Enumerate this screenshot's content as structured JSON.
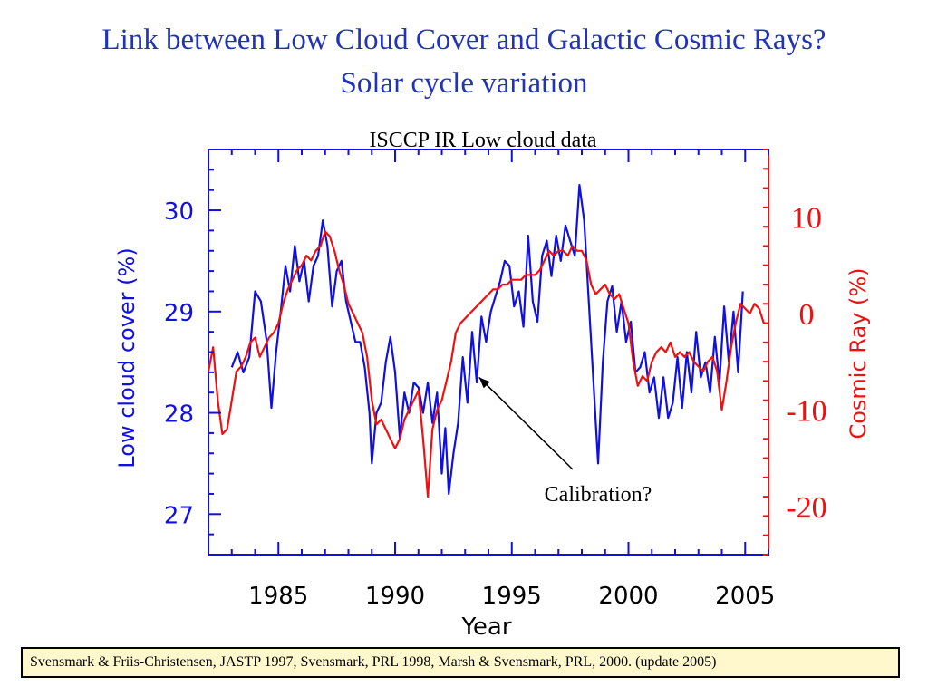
{
  "title": "Link between Low Cloud Cover and Galactic Cosmic Rays?",
  "subtitle": "Solar cycle variation",
  "citation": "Svensmark & Friis-Christensen, JASTP 1997, Svensmark, PRL  1998, Marsh & Svensmark, PRL, 2000. (update 2005)",
  "colors": {
    "title": "#2233bb",
    "cloud": "#1010e0",
    "cosmic": "#ee1111",
    "citation_bg": "#fff8cc"
  },
  "chart_data": {
    "type": "line",
    "title": "ISCCP IR Low cloud data",
    "xlabel": "Year",
    "ylabel_left": "Low cloud cover (%)",
    "ylabel_right": "Cosmic Ray (%)",
    "xlim": [
      1982,
      2006
    ],
    "ylim_left": [
      26.6,
      30.6
    ],
    "ylim_right": [
      -25,
      17
    ],
    "x_ticks": [
      1985,
      1990,
      1995,
      2000,
      2005
    ],
    "y_ticks_left": [
      27,
      28,
      29,
      30
    ],
    "y_ticks_right": [
      10,
      0,
      -10,
      -20
    ],
    "annotation": {
      "text": "Calibration?",
      "points_to": [
        1993.6,
        28.35
      ]
    },
    "series": [
      {
        "name": "Low cloud cover",
        "axis": "left",
        "points": [
          [
            1983.0,
            28.45
          ],
          [
            1983.25,
            28.6
          ],
          [
            1983.5,
            28.4
          ],
          [
            1983.75,
            28.55
          ],
          [
            1984.0,
            29.2
          ],
          [
            1984.25,
            29.1
          ],
          [
            1984.5,
            28.7
          ],
          [
            1984.7,
            28.05
          ],
          [
            1984.9,
            28.6
          ],
          [
            1985.1,
            29.0
          ],
          [
            1985.3,
            29.45
          ],
          [
            1985.5,
            29.2
          ],
          [
            1985.7,
            29.65
          ],
          [
            1985.9,
            29.3
          ],
          [
            1986.1,
            29.5
          ],
          [
            1986.3,
            29.1
          ],
          [
            1986.5,
            29.45
          ],
          [
            1986.7,
            29.55
          ],
          [
            1986.9,
            29.9
          ],
          [
            1987.1,
            29.65
          ],
          [
            1987.3,
            29.05
          ],
          [
            1987.5,
            29.4
          ],
          [
            1987.7,
            29.5
          ],
          [
            1987.9,
            29.1
          ],
          [
            1988.1,
            28.9
          ],
          [
            1988.3,
            28.7
          ],
          [
            1988.5,
            28.7
          ],
          [
            1988.7,
            28.45
          ],
          [
            1988.9,
            28.0
          ],
          [
            1989.0,
            27.5
          ],
          [
            1989.2,
            28.0
          ],
          [
            1989.4,
            28.1
          ],
          [
            1989.6,
            28.5
          ],
          [
            1989.8,
            28.75
          ],
          [
            1990.0,
            28.4
          ],
          [
            1990.2,
            27.75
          ],
          [
            1990.4,
            28.2
          ],
          [
            1990.6,
            28.0
          ],
          [
            1990.8,
            28.3
          ],
          [
            1991.0,
            28.25
          ],
          [
            1991.2,
            28.0
          ],
          [
            1991.4,
            28.3
          ],
          [
            1991.6,
            27.9
          ],
          [
            1991.8,
            28.2
          ],
          [
            1992.0,
            27.4
          ],
          [
            1992.15,
            27.85
          ],
          [
            1992.3,
            27.2
          ],
          [
            1992.5,
            27.6
          ],
          [
            1992.7,
            27.9
          ],
          [
            1992.9,
            28.55
          ],
          [
            1993.1,
            28.1
          ],
          [
            1993.3,
            28.8
          ],
          [
            1993.5,
            28.3
          ],
          [
            1993.7,
            28.95
          ],
          [
            1993.9,
            28.7
          ],
          [
            1994.1,
            29.0
          ],
          [
            1994.3,
            29.15
          ],
          [
            1994.5,
            29.3
          ],
          [
            1994.7,
            29.5
          ],
          [
            1994.9,
            29.45
          ],
          [
            1995.1,
            29.05
          ],
          [
            1995.3,
            29.2
          ],
          [
            1995.5,
            28.85
          ],
          [
            1995.7,
            29.75
          ],
          [
            1995.9,
            29.1
          ],
          [
            1996.1,
            28.9
          ],
          [
            1996.3,
            29.55
          ],
          [
            1996.5,
            29.7
          ],
          [
            1996.7,
            29.35
          ],
          [
            1996.9,
            29.75
          ],
          [
            1997.1,
            29.5
          ],
          [
            1997.3,
            29.85
          ],
          [
            1997.5,
            29.7
          ],
          [
            1997.7,
            29.55
          ],
          [
            1997.9,
            30.25
          ],
          [
            1998.1,
            29.9
          ],
          [
            1998.3,
            29.1
          ],
          [
            1998.5,
            28.3
          ],
          [
            1998.7,
            27.5
          ],
          [
            1998.9,
            28.5
          ],
          [
            1999.1,
            29.1
          ],
          [
            1999.3,
            29.25
          ],
          [
            1999.5,
            28.8
          ],
          [
            1999.7,
            29.1
          ],
          [
            1999.9,
            28.7
          ],
          [
            2000.1,
            28.9
          ],
          [
            2000.3,
            28.4
          ],
          [
            2000.5,
            28.45
          ],
          [
            2000.7,
            28.6
          ],
          [
            2000.9,
            28.2
          ],
          [
            2001.1,
            28.35
          ],
          [
            2001.3,
            27.95
          ],
          [
            2001.5,
            28.35
          ],
          [
            2001.7,
            27.95
          ],
          [
            2001.9,
            28.1
          ],
          [
            2002.1,
            28.55
          ],
          [
            2002.3,
            28.05
          ],
          [
            2002.5,
            28.6
          ],
          [
            2002.7,
            28.2
          ],
          [
            2002.9,
            28.8
          ],
          [
            2003.1,
            28.35
          ],
          [
            2003.3,
            28.5
          ],
          [
            2003.5,
            28.2
          ],
          [
            2003.7,
            28.75
          ],
          [
            2003.9,
            28.3
          ],
          [
            2004.1,
            29.05
          ],
          [
            2004.3,
            28.5
          ],
          [
            2004.5,
            29.0
          ],
          [
            2004.7,
            28.4
          ],
          [
            2004.9,
            29.2
          ]
        ]
      },
      {
        "name": "Cosmic Ray",
        "axis": "right",
        "points": [
          [
            1982.0,
            -6.0
          ],
          [
            1982.2,
            -3.5
          ],
          [
            1982.4,
            -9.0
          ],
          [
            1982.6,
            -12.5
          ],
          [
            1982.8,
            -12.0
          ],
          [
            1983.0,
            -9.0
          ],
          [
            1983.2,
            -6.0
          ],
          [
            1983.4,
            -5.5
          ],
          [
            1983.6,
            -4.5
          ],
          [
            1983.8,
            -3.0
          ],
          [
            1984.0,
            -2.5
          ],
          [
            1984.2,
            -4.5
          ],
          [
            1984.4,
            -3.5
          ],
          [
            1984.6,
            -2.5
          ],
          [
            1984.8,
            -2.0
          ],
          [
            1985.0,
            -1.0
          ],
          [
            1985.2,
            1.0
          ],
          [
            1985.4,
            2.5
          ],
          [
            1985.6,
            3.5
          ],
          [
            1985.8,
            4.5
          ],
          [
            1986.0,
            5.0
          ],
          [
            1986.2,
            6.0
          ],
          [
            1986.4,
            5.5
          ],
          [
            1986.6,
            6.5
          ],
          [
            1986.8,
            7.0
          ],
          [
            1987.0,
            8.5
          ],
          [
            1987.2,
            8.0
          ],
          [
            1987.4,
            6.5
          ],
          [
            1987.6,
            4.5
          ],
          [
            1987.8,
            3.0
          ],
          [
            1988.0,
            1.0
          ],
          [
            1988.2,
            0.0
          ],
          [
            1988.4,
            -1.0
          ],
          [
            1988.6,
            -2.0
          ],
          [
            1988.8,
            -4.5
          ],
          [
            1989.0,
            -9.0
          ],
          [
            1989.2,
            -11.5
          ],
          [
            1989.4,
            -11.0
          ],
          [
            1989.6,
            -12.0
          ],
          [
            1989.8,
            -13.0
          ],
          [
            1990.0,
            -14.0
          ],
          [
            1990.2,
            -13.0
          ],
          [
            1990.4,
            -11.0
          ],
          [
            1990.6,
            -10.0
          ],
          [
            1990.8,
            -9.0
          ],
          [
            1991.0,
            -8.0
          ],
          [
            1991.2,
            -13.0
          ],
          [
            1991.4,
            -19.0
          ],
          [
            1991.6,
            -12.0
          ],
          [
            1991.8,
            -10.0
          ],
          [
            1992.0,
            -9.0
          ],
          [
            1992.2,
            -7.0
          ],
          [
            1992.4,
            -5.0
          ],
          [
            1992.6,
            -2.0
          ],
          [
            1992.8,
            -1.0
          ],
          [
            1993.0,
            -0.5
          ],
          [
            1993.2,
            0.0
          ],
          [
            1993.4,
            0.5
          ],
          [
            1993.6,
            1.0
          ],
          [
            1993.8,
            1.5
          ],
          [
            1994.0,
            2.0
          ],
          [
            1994.2,
            2.5
          ],
          [
            1994.4,
            2.5
          ],
          [
            1994.6,
            3.0
          ],
          [
            1994.8,
            3.0
          ],
          [
            1995.0,
            3.5
          ],
          [
            1995.2,
            3.5
          ],
          [
            1995.4,
            3.5
          ],
          [
            1995.6,
            4.0
          ],
          [
            1995.8,
            4.0
          ],
          [
            1996.0,
            4.0
          ],
          [
            1996.2,
            4.5
          ],
          [
            1996.4,
            5.5
          ],
          [
            1996.6,
            6.5
          ],
          [
            1996.8,
            6.0
          ],
          [
            1997.0,
            6.5
          ],
          [
            1997.2,
            6.5
          ],
          [
            1997.4,
            6.0
          ],
          [
            1997.6,
            7.0
          ],
          [
            1997.8,
            6.5
          ],
          [
            1998.0,
            6.5
          ],
          [
            1998.2,
            5.5
          ],
          [
            1998.4,
            3.0
          ],
          [
            1998.6,
            2.0
          ],
          [
            1998.8,
            2.5
          ],
          [
            1999.0,
            3.0
          ],
          [
            1999.2,
            2.0
          ],
          [
            1999.4,
            1.5
          ],
          [
            1999.6,
            2.0
          ],
          [
            1999.8,
            0.5
          ],
          [
            2000.0,
            -1.0
          ],
          [
            2000.2,
            -5.0
          ],
          [
            2000.4,
            -7.5
          ],
          [
            2000.6,
            -6.5
          ],
          [
            2000.8,
            -7.0
          ],
          [
            2001.0,
            -5.0
          ],
          [
            2001.2,
            -4.0
          ],
          [
            2001.4,
            -3.5
          ],
          [
            2001.6,
            -4.0
          ],
          [
            2001.8,
            -3.0
          ],
          [
            2002.0,
            -4.5
          ],
          [
            2002.2,
            -4.0
          ],
          [
            2002.4,
            -4.5
          ],
          [
            2002.6,
            -4.0
          ],
          [
            2002.8,
            -5.0
          ],
          [
            2003.0,
            -5.5
          ],
          [
            2003.2,
            -6.0
          ],
          [
            2003.4,
            -5.0
          ],
          [
            2003.6,
            -4.5
          ],
          [
            2003.8,
            -6.0
          ],
          [
            2004.0,
            -10.0
          ],
          [
            2004.2,
            -7.0
          ],
          [
            2004.4,
            -3.5
          ],
          [
            2004.6,
            -1.0
          ],
          [
            2004.8,
            1.0
          ],
          [
            2005.0,
            0.5
          ],
          [
            2005.2,
            0.0
          ],
          [
            2005.4,
            1.0
          ],
          [
            2005.6,
            0.5
          ],
          [
            2005.8,
            -1.0
          ]
        ]
      }
    ]
  }
}
